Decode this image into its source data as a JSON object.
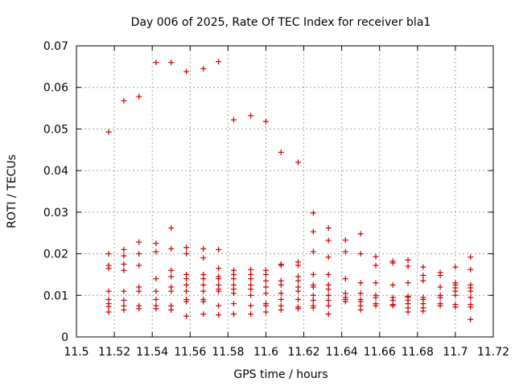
{
  "chart_data": {
    "type": "scatter",
    "title": "Day 006 of 2025, Rate Of TEC Index for receiver bla1",
    "xlabel": "GPS time / hours",
    "ylabel": "ROTI / TECUs",
    "xlim": [
      11.5,
      11.72
    ],
    "ylim": [
      0,
      0.07
    ],
    "x_ticks": [
      "11.5",
      "11.52",
      "11.54",
      "11.56",
      "11.58",
      "11.6",
      "11.62",
      "11.64",
      "11.66",
      "11.68",
      "11.7",
      "11.72"
    ],
    "y_ticks": [
      "0",
      "0.01",
      "0.02",
      "0.03",
      "0.04",
      "0.05",
      "0.06",
      "0.07"
    ],
    "grid": true,
    "marker": "+",
    "color": "#cc0000",
    "series": [
      {
        "name": "ROTI",
        "points": [
          [
            11.517,
            0.0493
          ],
          [
            11.517,
            0.02
          ],
          [
            11.517,
            0.0172
          ],
          [
            11.517,
            0.0165
          ],
          [
            11.517,
            0.011
          ],
          [
            11.517,
            0.009
          ],
          [
            11.517,
            0.008
          ],
          [
            11.517,
            0.0073
          ],
          [
            11.517,
            0.006
          ],
          [
            11.525,
            0.0568
          ],
          [
            11.525,
            0.021
          ],
          [
            11.525,
            0.0195
          ],
          [
            11.525,
            0.0175
          ],
          [
            11.525,
            0.016
          ],
          [
            11.525,
            0.011
          ],
          [
            11.525,
            0.0088
          ],
          [
            11.525,
            0.0075
          ],
          [
            11.525,
            0.0065
          ],
          [
            11.533,
            0.0578
          ],
          [
            11.533,
            0.0228
          ],
          [
            11.533,
            0.02
          ],
          [
            11.533,
            0.0172
          ],
          [
            11.533,
            0.012
          ],
          [
            11.533,
            0.011
          ],
          [
            11.533,
            0.0075
          ],
          [
            11.533,
            0.0068
          ],
          [
            11.542,
            0.066
          ],
          [
            11.542,
            0.0225
          ],
          [
            11.542,
            0.0205
          ],
          [
            11.542,
            0.014
          ],
          [
            11.542,
            0.011
          ],
          [
            11.542,
            0.009
          ],
          [
            11.542,
            0.0075
          ],
          [
            11.542,
            0.0068
          ],
          [
            11.55,
            0.066
          ],
          [
            11.55,
            0.0262
          ],
          [
            11.55,
            0.0212
          ],
          [
            11.55,
            0.016
          ],
          [
            11.55,
            0.0145
          ],
          [
            11.55,
            0.012
          ],
          [
            11.55,
            0.011
          ],
          [
            11.55,
            0.0075
          ],
          [
            11.55,
            0.0065
          ],
          [
            11.558,
            0.0638
          ],
          [
            11.558,
            0.0215
          ],
          [
            11.558,
            0.02
          ],
          [
            11.558,
            0.015
          ],
          [
            11.558,
            0.014
          ],
          [
            11.558,
            0.0125
          ],
          [
            11.558,
            0.011
          ],
          [
            11.558,
            0.009
          ],
          [
            11.558,
            0.0085
          ],
          [
            11.558,
            0.005
          ],
          [
            11.567,
            0.0645
          ],
          [
            11.567,
            0.0212
          ],
          [
            11.567,
            0.019
          ],
          [
            11.567,
            0.015
          ],
          [
            11.567,
            0.014
          ],
          [
            11.567,
            0.0125
          ],
          [
            11.567,
            0.011
          ],
          [
            11.567,
            0.009
          ],
          [
            11.567,
            0.0085
          ],
          [
            11.567,
            0.0055
          ],
          [
            11.575,
            0.0662
          ],
          [
            11.575,
            0.021
          ],
          [
            11.575,
            0.0165
          ],
          [
            11.575,
            0.0145
          ],
          [
            11.575,
            0.014
          ],
          [
            11.575,
            0.0125
          ],
          [
            11.575,
            0.0115
          ],
          [
            11.575,
            0.011
          ],
          [
            11.575,
            0.0075
          ],
          [
            11.575,
            0.0053
          ],
          [
            11.583,
            0.0522
          ],
          [
            11.583,
            0.016
          ],
          [
            11.583,
            0.015
          ],
          [
            11.583,
            0.014
          ],
          [
            11.583,
            0.0125
          ],
          [
            11.583,
            0.0115
          ],
          [
            11.583,
            0.0105
          ],
          [
            11.583,
            0.008
          ],
          [
            11.583,
            0.0055
          ],
          [
            11.592,
            0.0532
          ],
          [
            11.592,
            0.0162
          ],
          [
            11.592,
            0.015
          ],
          [
            11.592,
            0.014
          ],
          [
            11.592,
            0.0125
          ],
          [
            11.592,
            0.0115
          ],
          [
            11.592,
            0.01
          ],
          [
            11.592,
            0.0075
          ],
          [
            11.592,
            0.0055
          ],
          [
            11.6,
            0.0518
          ],
          [
            11.6,
            0.016
          ],
          [
            11.6,
            0.015
          ],
          [
            11.6,
            0.0135
          ],
          [
            11.6,
            0.012
          ],
          [
            11.6,
            0.0105
          ],
          [
            11.6,
            0.008
          ],
          [
            11.6,
            0.0075
          ],
          [
            11.6,
            0.006
          ],
          [
            11.608,
            0.0444
          ],
          [
            11.608,
            0.0175
          ],
          [
            11.608,
            0.0172
          ],
          [
            11.608,
            0.0135
          ],
          [
            11.608,
            0.0125
          ],
          [
            11.608,
            0.0105
          ],
          [
            11.608,
            0.009
          ],
          [
            11.608,
            0.0075
          ],
          [
            11.608,
            0.0065
          ],
          [
            11.617,
            0.042
          ],
          [
            11.617,
            0.018
          ],
          [
            11.617,
            0.0172
          ],
          [
            11.617,
            0.0145
          ],
          [
            11.617,
            0.0135
          ],
          [
            11.617,
            0.012
          ],
          [
            11.617,
            0.011
          ],
          [
            11.617,
            0.009
          ],
          [
            11.617,
            0.0072
          ],
          [
            11.617,
            0.0068
          ],
          [
            11.625,
            0.0298
          ],
          [
            11.625,
            0.0253
          ],
          [
            11.625,
            0.0205
          ],
          [
            11.625,
            0.015
          ],
          [
            11.625,
            0.0125
          ],
          [
            11.625,
            0.012
          ],
          [
            11.625,
            0.01
          ],
          [
            11.625,
            0.0088
          ],
          [
            11.625,
            0.0075
          ],
          [
            11.625,
            0.007
          ],
          [
            11.633,
            0.0262
          ],
          [
            11.633,
            0.0232
          ],
          [
            11.633,
            0.0192
          ],
          [
            11.633,
            0.015
          ],
          [
            11.633,
            0.0125
          ],
          [
            11.633,
            0.0115
          ],
          [
            11.633,
            0.01
          ],
          [
            11.633,
            0.0088
          ],
          [
            11.633,
            0.0075
          ],
          [
            11.633,
            0.0055
          ],
          [
            11.642,
            0.0233
          ],
          [
            11.642,
            0.0205
          ],
          [
            11.642,
            0.014
          ],
          [
            11.642,
            0.0105
          ],
          [
            11.642,
            0.0095
          ],
          [
            11.642,
            0.009
          ],
          [
            11.642,
            0.0085
          ],
          [
            11.65,
            0.0248
          ],
          [
            11.65,
            0.02
          ],
          [
            11.65,
            0.013
          ],
          [
            11.65,
            0.0105
          ],
          [
            11.65,
            0.009
          ],
          [
            11.65,
            0.0085
          ],
          [
            11.65,
            0.0075
          ],
          [
            11.65,
            0.0065
          ],
          [
            11.658,
            0.0193
          ],
          [
            11.658,
            0.0172
          ],
          [
            11.658,
            0.013
          ],
          [
            11.658,
            0.01
          ],
          [
            11.658,
            0.0095
          ],
          [
            11.658,
            0.008
          ],
          [
            11.658,
            0.0075
          ],
          [
            11.667,
            0.0182
          ],
          [
            11.667,
            0.0178
          ],
          [
            11.667,
            0.0125
          ],
          [
            11.667,
            0.0095
          ],
          [
            11.667,
            0.0088
          ],
          [
            11.667,
            0.0078
          ],
          [
            11.667,
            0.0075
          ],
          [
            11.675,
            0.0185
          ],
          [
            11.675,
            0.017
          ],
          [
            11.675,
            0.013
          ],
          [
            11.675,
            0.0098
          ],
          [
            11.675,
            0.0095
          ],
          [
            11.675,
            0.0088
          ],
          [
            11.675,
            0.008
          ],
          [
            11.675,
            0.007
          ],
          [
            11.675,
            0.006
          ],
          [
            11.683,
            0.0168
          ],
          [
            11.683,
            0.0148
          ],
          [
            11.683,
            0.0135
          ],
          [
            11.683,
            0.0095
          ],
          [
            11.683,
            0.009
          ],
          [
            11.683,
            0.008
          ],
          [
            11.683,
            0.007
          ],
          [
            11.683,
            0.0062
          ],
          [
            11.692,
            0.0155
          ],
          [
            11.692,
            0.0148
          ],
          [
            11.692,
            0.012
          ],
          [
            11.692,
            0.01
          ],
          [
            11.692,
            0.0095
          ],
          [
            11.692,
            0.008
          ],
          [
            11.692,
            0.0075
          ],
          [
            11.7,
            0.0168
          ],
          [
            11.7,
            0.013
          ],
          [
            11.7,
            0.0125
          ],
          [
            11.7,
            0.0118
          ],
          [
            11.7,
            0.011
          ],
          [
            11.7,
            0.01
          ],
          [
            11.7,
            0.0078
          ],
          [
            11.7,
            0.0072
          ],
          [
            11.708,
            0.0192
          ],
          [
            11.708,
            0.0162
          ],
          [
            11.708,
            0.0125
          ],
          [
            11.708,
            0.0118
          ],
          [
            11.708,
            0.011
          ],
          [
            11.708,
            0.0095
          ],
          [
            11.708,
            0.0078
          ],
          [
            11.708,
            0.0072
          ],
          [
            11.708,
            0.0042
          ]
        ]
      }
    ]
  }
}
